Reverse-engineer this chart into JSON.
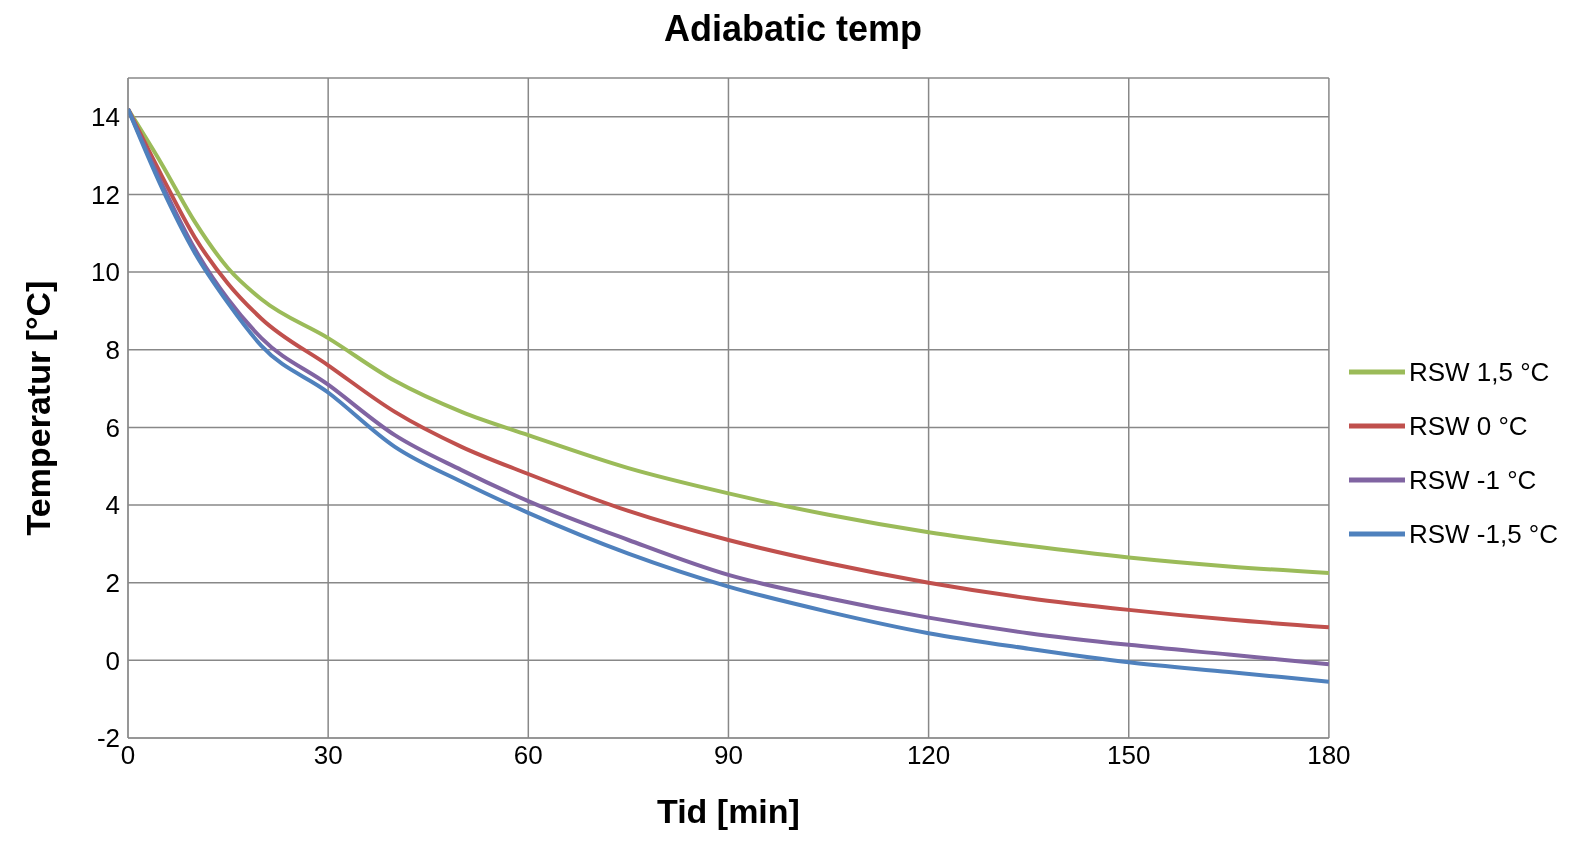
{
  "chart_data": {
    "type": "line",
    "title": "Adiabatic temp",
    "xlabel": "Tid [min]",
    "ylabel": "Temperatur [°C]",
    "x": [
      0,
      5,
      10,
      15,
      20,
      30,
      40,
      50,
      60,
      75,
      90,
      105,
      120,
      135,
      150,
      165,
      180
    ],
    "series": [
      {
        "name": "RSW 1,5 °C",
        "color": "#9bbb59",
        "values": [
          14.2,
          12.8,
          11.3,
          10.1,
          9.3,
          8.3,
          7.2,
          6.4,
          5.8,
          4.95,
          4.3,
          3.75,
          3.3,
          2.95,
          2.65,
          2.42,
          2.25
        ]
      },
      {
        "name": "RSW 0 °C",
        "color": "#c0504d",
        "values": [
          14.2,
          12.5,
          10.9,
          9.7,
          8.8,
          7.6,
          6.4,
          5.5,
          4.8,
          3.85,
          3.1,
          2.5,
          2.0,
          1.6,
          1.3,
          1.05,
          0.85
        ]
      },
      {
        "name": "RSW -1 °C",
        "color": "#8064a2",
        "values": [
          14.2,
          12.3,
          10.6,
          9.3,
          8.3,
          7.1,
          5.8,
          4.9,
          4.1,
          3.1,
          2.2,
          1.6,
          1.1,
          0.7,
          0.4,
          0.15,
          -0.1
        ]
      },
      {
        "name": "RSW -1,5 °C",
        "color": "#4f81bd",
        "values": [
          14.2,
          12.2,
          10.5,
          9.2,
          8.1,
          6.9,
          5.5,
          4.6,
          3.8,
          2.75,
          1.9,
          1.25,
          0.7,
          0.3,
          -0.05,
          -0.3,
          -0.55
        ]
      }
    ],
    "xlim": [
      0,
      180
    ],
    "xticks": [
      0,
      30,
      60,
      90,
      120,
      150,
      180
    ],
    "ylim": [
      -2,
      15
    ],
    "yticks": [
      -2,
      0,
      2,
      4,
      6,
      8,
      10,
      12,
      14
    ],
    "grid": true,
    "legend": "right",
    "marker": "none",
    "line_style": "solid"
  }
}
